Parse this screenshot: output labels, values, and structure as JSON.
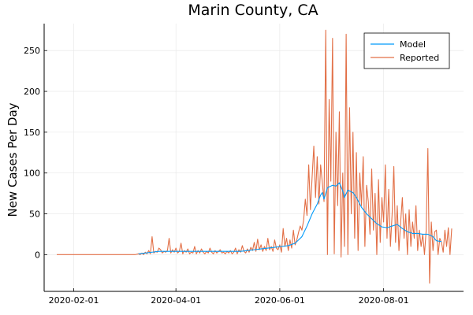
{
  "chart_data": {
    "type": "line",
    "title": "Marin County, CA",
    "xlabel": "",
    "ylabel": "New Cases Per Day",
    "grid": true,
    "legend_position": "top-right",
    "xlim": [
      "2020-01-22",
      "2020-09-10"
    ],
    "ylim": [
      -45,
      283
    ],
    "x_ticks": [
      "2020-02-01",
      "2020-04-01",
      "2020-06-01",
      "2020-08-01"
    ],
    "y_ticks": [
      0,
      50,
      100,
      150,
      200,
      250
    ],
    "series": [
      {
        "name": "Model",
        "color": "#009af9",
        "points": [
          [
            "2020-03-10",
            1
          ],
          [
            "2020-03-14",
            2
          ],
          [
            "2020-03-18",
            3
          ],
          [
            "2020-03-22",
            4
          ],
          [
            "2020-03-26",
            4
          ],
          [
            "2020-03-30",
            4
          ],
          [
            "2020-04-03",
            4
          ],
          [
            "2020-04-07",
            4
          ],
          [
            "2020-04-11",
            4
          ],
          [
            "2020-04-15",
            4
          ],
          [
            "2020-04-19",
            4
          ],
          [
            "2020-04-23",
            4
          ],
          [
            "2020-04-27",
            4
          ],
          [
            "2020-05-01",
            4
          ],
          [
            "2020-05-05",
            4
          ],
          [
            "2020-05-09",
            4
          ],
          [
            "2020-05-13",
            5
          ],
          [
            "2020-05-17",
            6
          ],
          [
            "2020-05-21",
            7
          ],
          [
            "2020-05-25",
            8
          ],
          [
            "2020-05-29",
            9
          ],
          [
            "2020-06-02",
            10
          ],
          [
            "2020-06-06",
            11
          ],
          [
            "2020-06-10",
            14
          ],
          [
            "2020-06-14",
            22
          ],
          [
            "2020-06-17",
            35
          ],
          [
            "2020-06-20",
            50
          ],
          [
            "2020-06-23",
            62
          ],
          [
            "2020-06-25",
            73
          ],
          [
            "2020-06-26",
            76
          ],
          [
            "2020-06-27",
            68
          ],
          [
            "2020-06-29",
            82
          ],
          [
            "2020-07-02",
            85
          ],
          [
            "2020-07-04",
            84
          ],
          [
            "2020-07-06",
            88
          ],
          [
            "2020-07-08",
            78
          ],
          [
            "2020-07-09",
            70
          ],
          [
            "2020-07-11",
            79
          ],
          [
            "2020-07-14",
            76
          ],
          [
            "2020-07-16",
            70
          ],
          [
            "2020-07-19",
            58
          ],
          [
            "2020-07-22",
            50
          ],
          [
            "2020-07-25",
            44
          ],
          [
            "2020-07-28",
            38
          ],
          [
            "2020-07-31",
            34
          ],
          [
            "2020-08-03",
            33
          ],
          [
            "2020-08-06",
            35
          ],
          [
            "2020-08-09",
            37
          ],
          [
            "2020-08-12",
            32
          ],
          [
            "2020-08-15",
            28
          ],
          [
            "2020-08-18",
            26
          ],
          [
            "2020-08-21",
            26
          ],
          [
            "2020-08-24",
            25
          ],
          [
            "2020-08-27",
            25
          ],
          [
            "2020-08-30",
            22
          ],
          [
            "2020-09-01",
            17
          ],
          [
            "2020-09-04",
            16
          ]
        ]
      },
      {
        "name": "Reported",
        "color": "#e26f46",
        "points": [
          [
            "2020-01-22",
            0
          ],
          [
            "2020-03-08",
            0
          ],
          [
            "2020-03-10",
            1
          ],
          [
            "2020-03-11",
            0
          ],
          [
            "2020-03-12",
            2
          ],
          [
            "2020-03-13",
            0
          ],
          [
            "2020-03-14",
            3
          ],
          [
            "2020-03-15",
            1
          ],
          [
            "2020-03-16",
            5
          ],
          [
            "2020-03-17",
            1
          ],
          [
            "2020-03-18",
            22
          ],
          [
            "2020-03-19",
            2
          ],
          [
            "2020-03-20",
            4
          ],
          [
            "2020-03-21",
            3
          ],
          [
            "2020-03-22",
            8
          ],
          [
            "2020-03-23",
            6
          ],
          [
            "2020-03-24",
            2
          ],
          [
            "2020-03-25",
            4
          ],
          [
            "2020-03-26",
            3
          ],
          [
            "2020-03-27",
            5
          ],
          [
            "2020-03-28",
            20
          ],
          [
            "2020-03-29",
            2
          ],
          [
            "2020-03-30",
            6
          ],
          [
            "2020-03-31",
            3
          ],
          [
            "2020-04-01",
            8
          ],
          [
            "2020-04-02",
            2
          ],
          [
            "2020-04-03",
            4
          ],
          [
            "2020-04-04",
            14
          ],
          [
            "2020-04-05",
            1
          ],
          [
            "2020-04-06",
            5
          ],
          [
            "2020-04-07",
            3
          ],
          [
            "2020-04-08",
            7
          ],
          [
            "2020-04-09",
            1
          ],
          [
            "2020-04-10",
            3
          ],
          [
            "2020-04-11",
            2
          ],
          [
            "2020-04-12",
            10
          ],
          [
            "2020-04-13",
            1
          ],
          [
            "2020-04-14",
            5
          ],
          [
            "2020-04-15",
            2
          ],
          [
            "2020-04-16",
            7
          ],
          [
            "2020-04-17",
            3
          ],
          [
            "2020-04-18",
            1
          ],
          [
            "2020-04-19",
            4
          ],
          [
            "2020-04-20",
            2
          ],
          [
            "2020-04-21",
            8
          ],
          [
            "2020-04-22",
            3
          ],
          [
            "2020-04-23",
            1
          ],
          [
            "2020-04-24",
            5
          ],
          [
            "2020-04-25",
            2
          ],
          [
            "2020-04-26",
            4
          ],
          [
            "2020-04-27",
            6
          ],
          [
            "2020-04-28",
            2
          ],
          [
            "2020-04-29",
            3
          ],
          [
            "2020-04-30",
            1
          ],
          [
            "2020-05-01",
            4
          ],
          [
            "2020-05-02",
            2
          ],
          [
            "2020-05-03",
            5
          ],
          [
            "2020-05-04",
            1
          ],
          [
            "2020-05-05",
            3
          ],
          [
            "2020-05-06",
            8
          ],
          [
            "2020-05-07",
            1
          ],
          [
            "2020-05-08",
            6
          ],
          [
            "2020-05-09",
            3
          ],
          [
            "2020-05-10",
            11
          ],
          [
            "2020-05-11",
            4
          ],
          [
            "2020-05-12",
            2
          ],
          [
            "2020-05-13",
            7
          ],
          [
            "2020-05-14",
            3
          ],
          [
            "2020-05-15",
            9
          ],
          [
            "2020-05-16",
            5
          ],
          [
            "2020-05-17",
            15
          ],
          [
            "2020-05-18",
            4
          ],
          [
            "2020-05-19",
            19
          ],
          [
            "2020-05-20",
            6
          ],
          [
            "2020-05-21",
            12
          ],
          [
            "2020-05-22",
            4
          ],
          [
            "2020-05-23",
            10
          ],
          [
            "2020-05-24",
            5
          ],
          [
            "2020-05-25",
            20
          ],
          [
            "2020-05-26",
            6
          ],
          [
            "2020-05-27",
            10
          ],
          [
            "2020-05-28",
            4
          ],
          [
            "2020-05-29",
            18
          ],
          [
            "2020-05-30",
            8
          ],
          [
            "2020-05-31",
            6
          ],
          [
            "2020-06-01",
            12
          ],
          [
            "2020-06-02",
            3
          ],
          [
            "2020-06-03",
            32
          ],
          [
            "2020-06-04",
            10
          ],
          [
            "2020-06-05",
            20
          ],
          [
            "2020-06-06",
            5
          ],
          [
            "2020-06-07",
            18
          ],
          [
            "2020-06-08",
            8
          ],
          [
            "2020-06-09",
            30
          ],
          [
            "2020-06-10",
            12
          ],
          [
            "2020-06-11",
            18
          ],
          [
            "2020-06-12",
            27
          ],
          [
            "2020-06-13",
            35
          ],
          [
            "2020-06-14",
            30
          ],
          [
            "2020-06-15",
            42
          ],
          [
            "2020-06-16",
            68
          ],
          [
            "2020-06-17",
            48
          ],
          [
            "2020-06-18",
            110
          ],
          [
            "2020-06-19",
            55
          ],
          [
            "2020-06-20",
            95
          ],
          [
            "2020-06-21",
            133
          ],
          [
            "2020-06-22",
            70
          ],
          [
            "2020-06-23",
            120
          ],
          [
            "2020-06-24",
            62
          ],
          [
            "2020-06-25",
            110
          ],
          [
            "2020-06-26",
            88
          ],
          [
            "2020-06-27",
            65
          ],
          [
            "2020-06-28",
            275
          ],
          [
            "2020-06-29",
            0
          ],
          [
            "2020-06-30",
            190
          ],
          [
            "2020-07-01",
            90
          ],
          [
            "2020-07-02",
            265
          ],
          [
            "2020-07-03",
            1
          ],
          [
            "2020-07-04",
            150
          ],
          [
            "2020-07-05",
            60
          ],
          [
            "2020-07-06",
            175
          ],
          [
            "2020-07-07",
            -3
          ],
          [
            "2020-07-08",
            100
          ],
          [
            "2020-07-09",
            10
          ],
          [
            "2020-07-10",
            270
          ],
          [
            "2020-07-11",
            0
          ],
          [
            "2020-07-12",
            180
          ],
          [
            "2020-07-13",
            50
          ],
          [
            "2020-07-14",
            150
          ],
          [
            "2020-07-15",
            20
          ],
          [
            "2020-07-16",
            125
          ],
          [
            "2020-07-17",
            5
          ],
          [
            "2020-07-18",
            100
          ],
          [
            "2020-07-19",
            60
          ],
          [
            "2020-07-20",
            120
          ],
          [
            "2020-07-21",
            10
          ],
          [
            "2020-07-22",
            85
          ],
          [
            "2020-07-23",
            65
          ],
          [
            "2020-07-24",
            25
          ],
          [
            "2020-07-25",
            105
          ],
          [
            "2020-07-26",
            30
          ],
          [
            "2020-07-27",
            75
          ],
          [
            "2020-07-28",
            0
          ],
          [
            "2020-07-29",
            92
          ],
          [
            "2020-07-30",
            15
          ],
          [
            "2020-07-31",
            70
          ],
          [
            "2020-08-01",
            40
          ],
          [
            "2020-08-02",
            110
          ],
          [
            "2020-08-03",
            20
          ],
          [
            "2020-08-04",
            80
          ],
          [
            "2020-08-05",
            10
          ],
          [
            "2020-08-06",
            50
          ],
          [
            "2020-08-07",
            108
          ],
          [
            "2020-08-08",
            15
          ],
          [
            "2020-08-09",
            60
          ],
          [
            "2020-08-10",
            5
          ],
          [
            "2020-08-11",
            40
          ],
          [
            "2020-08-12",
            70
          ],
          [
            "2020-08-13",
            20
          ],
          [
            "2020-08-14",
            50
          ],
          [
            "2020-08-15",
            0
          ],
          [
            "2020-08-16",
            55
          ],
          [
            "2020-08-17",
            10
          ],
          [
            "2020-08-18",
            40
          ],
          [
            "2020-08-19",
            20
          ],
          [
            "2020-08-20",
            60
          ],
          [
            "2020-08-21",
            5
          ],
          [
            "2020-08-22",
            30
          ],
          [
            "2020-08-23",
            10
          ],
          [
            "2020-08-24",
            25
          ],
          [
            "2020-08-25",
            0
          ],
          [
            "2020-08-26",
            30
          ],
          [
            "2020-08-27",
            130
          ],
          [
            "2020-08-28",
            -35
          ],
          [
            "2020-08-29",
            40
          ],
          [
            "2020-08-30",
            5
          ],
          [
            "2020-08-31",
            28
          ],
          [
            "2020-09-01",
            30
          ],
          [
            "2020-09-02",
            0
          ],
          [
            "2020-09-03",
            20
          ],
          [
            "2020-09-04",
            15
          ],
          [
            "2020-09-05",
            3
          ],
          [
            "2020-09-06",
            30
          ],
          [
            "2020-09-07",
            10
          ],
          [
            "2020-09-08",
            33
          ],
          [
            "2020-09-09",
            0
          ],
          [
            "2020-09-10",
            32
          ]
        ]
      }
    ]
  }
}
